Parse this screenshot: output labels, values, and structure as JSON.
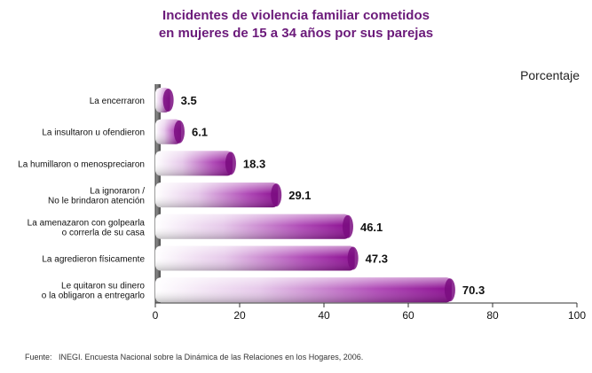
{
  "header": {
    "title_line1": "Incidentes de violencia familiar cometidos",
    "title_line2": "en mujeres de 15 a 34 años por sus parejas",
    "unit_label": "Porcentaje"
  },
  "footer": {
    "source_label": "Fuente:",
    "source_text": "INEGI. Encuesta Nacional sobre la Dinámica de las Relaciones en los Hogares, 2006."
  },
  "colors": {
    "bar_dark": "#8b0f91",
    "bar_mid": "#c77ccd",
    "bar_light": "#ffffff",
    "title": "#6b1a7a"
  },
  "chart_data": {
    "type": "bar",
    "orientation": "horizontal",
    "title": "Incidentes de violencia familiar cometidos en mujeres de 15 a 34 años por sus parejas",
    "xlabel": "Porcentaje",
    "ylabel": "",
    "xlim": [
      0,
      100
    ],
    "xticks": [
      0,
      20,
      40,
      60,
      80,
      100
    ],
    "grid": false,
    "categories": [
      [
        "La encerraron"
      ],
      [
        "La insultaron u ofendieron"
      ],
      [
        "La humillaron  o menospreciaron"
      ],
      [
        "La ignoraron /",
        "No le brindaron atención"
      ],
      [
        "La amenazaron con golpearla",
        "o correrla de su casa"
      ],
      [
        "La agredieron físicamente"
      ],
      [
        "Le quitaron su dinero",
        "o la obligaron a entregarlo"
      ]
    ],
    "values": [
      3.5,
      6.1,
      18.3,
      29.1,
      46.1,
      47.3,
      70.3
    ]
  }
}
